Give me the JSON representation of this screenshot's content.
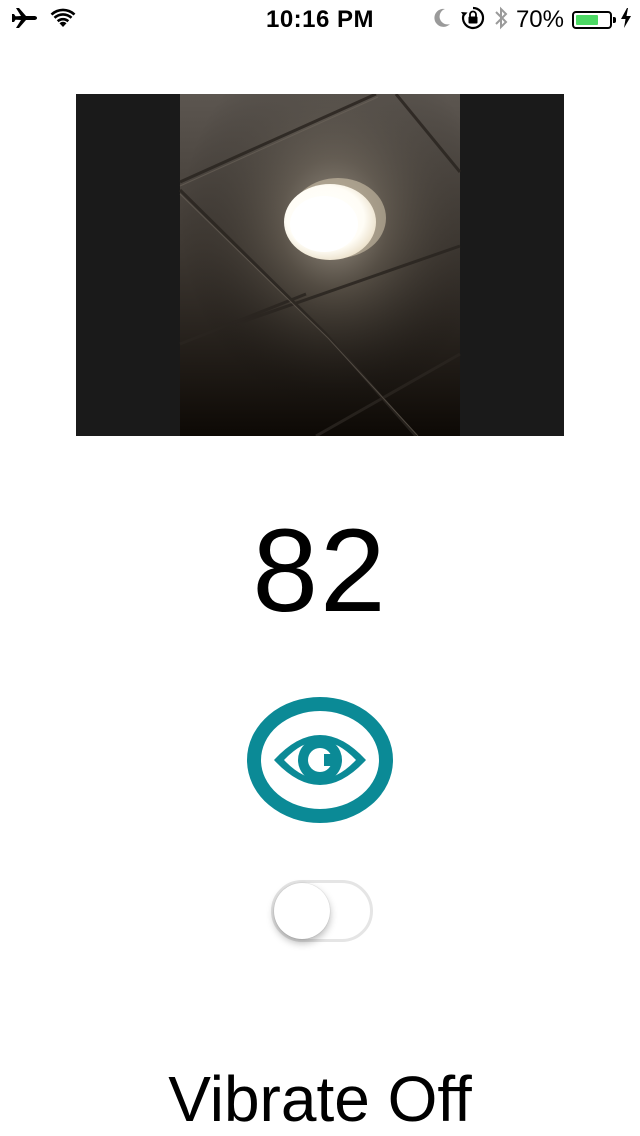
{
  "status_bar": {
    "time": "10:16 PM",
    "battery_percent_label": "70%",
    "battery_level": 0.7,
    "battery_color": "#4cd964",
    "icons_left": [
      "airplane-icon",
      "wifi-icon"
    ],
    "icons_right": [
      "moon-icon",
      "orientation-lock-icon",
      "bluetooth-icon",
      "battery-icon",
      "charging-bolt-icon"
    ]
  },
  "camera_preview": {
    "description_icon": "camera-feed"
  },
  "reading": {
    "value": "82"
  },
  "eye_button": {
    "icon": "eye-icon",
    "color": "#0b8a96"
  },
  "vibrate_toggle": {
    "state": "off"
  },
  "vibrate_label": "Vibrate Off"
}
